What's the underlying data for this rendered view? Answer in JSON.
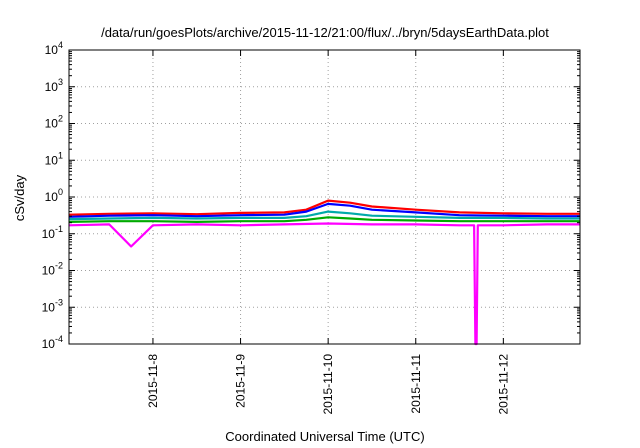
{
  "chart_data": {
    "type": "line",
    "title": "/data/run/goesPlots/archive/2015-11-12/21:00/flux/../bryn/5daysEarthData.plot",
    "xlabel": "Coordinated Universal Time (UTC)",
    "ylabel": "cSv/day",
    "yscale": "log",
    "ylim": [
      0.0001,
      10000
    ],
    "xlim": [
      "2015-11-07T01:00",
      "2015-11-12T21:00"
    ],
    "y_ticks": [
      {
        "value": 0.0001,
        "base": "10",
        "exp": "-4"
      },
      {
        "value": 0.001,
        "base": "10",
        "exp": "-3"
      },
      {
        "value": 0.01,
        "base": "10",
        "exp": "-2"
      },
      {
        "value": 0.1,
        "base": "10",
        "exp": "-1"
      },
      {
        "value": 1,
        "base": "10",
        "exp": "0"
      },
      {
        "value": 10,
        "base": "10",
        "exp": "1"
      },
      {
        "value": 100,
        "base": "10",
        "exp": "2"
      },
      {
        "value": 1000,
        "base": "10",
        "exp": "3"
      },
      {
        "value": 10000,
        "base": "10",
        "exp": "4"
      }
    ],
    "x_ticks": [
      {
        "value": "2015-11-08",
        "label": "2015-11-8"
      },
      {
        "value": "2015-11-09",
        "label": "2015-11-9"
      },
      {
        "value": "2015-11-10",
        "label": "2015-11-10"
      },
      {
        "value": "2015-11-11",
        "label": "2015-11-11"
      },
      {
        "value": "2015-11-12",
        "label": "2015-11-12"
      }
    ],
    "grid": true,
    "legend": "none",
    "series": [
      {
        "color": "#ff0000",
        "x": [
          "2015-11-07T01:00",
          "2015-11-07T12:00",
          "2015-11-08T00:00",
          "2015-11-08T12:00",
          "2015-11-09T00:00",
          "2015-11-09T12:00",
          "2015-11-09T18:00",
          "2015-11-10T00:00",
          "2015-11-10T06:00",
          "2015-11-10T12:00",
          "2015-11-11T00:00",
          "2015-11-11T12:00",
          "2015-11-12T00:00",
          "2015-11-12T12:00",
          "2015-11-12T21:00"
        ],
        "y": [
          0.33,
          0.35,
          0.36,
          0.34,
          0.37,
          0.38,
          0.45,
          0.8,
          0.7,
          0.55,
          0.45,
          0.38,
          0.36,
          0.35,
          0.35
        ]
      },
      {
        "color": "#0000ff",
        "x": [
          "2015-11-07T01:00",
          "2015-11-07T12:00",
          "2015-11-08T00:00",
          "2015-11-08T12:00",
          "2015-11-09T00:00",
          "2015-11-09T12:00",
          "2015-11-09T18:00",
          "2015-11-10T00:00",
          "2015-11-10T06:00",
          "2015-11-10T12:00",
          "2015-11-11T00:00",
          "2015-11-11T12:00",
          "2015-11-12T00:00",
          "2015-11-12T12:00",
          "2015-11-12T21:00"
        ],
        "y": [
          0.29,
          0.31,
          0.32,
          0.3,
          0.32,
          0.33,
          0.4,
          0.65,
          0.58,
          0.45,
          0.38,
          0.32,
          0.31,
          0.3,
          0.3
        ]
      },
      {
        "color": "#00aaaa",
        "x": [
          "2015-11-07T01:00",
          "2015-11-07T12:00",
          "2015-11-08T00:00",
          "2015-11-08T12:00",
          "2015-11-09T00:00",
          "2015-11-09T12:00",
          "2015-11-09T18:00",
          "2015-11-10T00:00",
          "2015-11-10T06:00",
          "2015-11-10T12:00",
          "2015-11-11T00:00",
          "2015-11-11T12:00",
          "2015-11-12T00:00",
          "2015-11-12T12:00",
          "2015-11-12T21:00"
        ],
        "y": [
          0.25,
          0.26,
          0.27,
          0.26,
          0.27,
          0.27,
          0.3,
          0.4,
          0.36,
          0.31,
          0.29,
          0.27,
          0.27,
          0.26,
          0.26
        ]
      },
      {
        "color": "#00aa00",
        "x": [
          "2015-11-07T01:00",
          "2015-11-07T12:00",
          "2015-11-08T00:00",
          "2015-11-08T12:00",
          "2015-11-09T00:00",
          "2015-11-09T12:00",
          "2015-11-09T18:00",
          "2015-11-10T00:00",
          "2015-11-10T06:00",
          "2015-11-10T12:00",
          "2015-11-11T00:00",
          "2015-11-11T12:00",
          "2015-11-12T00:00",
          "2015-11-12T12:00",
          "2015-11-12T21:00"
        ],
        "y": [
          0.21,
          0.22,
          0.22,
          0.21,
          0.22,
          0.22,
          0.24,
          0.28,
          0.26,
          0.24,
          0.23,
          0.22,
          0.22,
          0.22,
          0.22
        ]
      },
      {
        "color": "#ff00ff",
        "x": [
          "2015-11-07T01:00",
          "2015-11-07T12:00",
          "2015-11-07T18:00",
          "2015-11-08T00:00",
          "2015-11-08T12:00",
          "2015-11-09T00:00",
          "2015-11-09T12:00",
          "2015-11-10T00:00",
          "2015-11-10T12:00",
          "2015-11-11T00:00",
          "2015-11-11T12:00",
          "2015-11-11T16:00",
          "2015-11-11T16:20",
          "2015-11-11T16:40",
          "2015-11-11T17:00",
          "2015-11-12T00:00",
          "2015-11-12T12:00",
          "2015-11-12T21:00"
        ],
        "y": [
          0.17,
          0.18,
          0.045,
          0.17,
          0.18,
          0.17,
          0.18,
          0.19,
          0.18,
          0.18,
          0.17,
          0.17,
          0.0001,
          0.0001,
          0.17,
          0.17,
          0.18,
          0.18
        ]
      }
    ]
  }
}
